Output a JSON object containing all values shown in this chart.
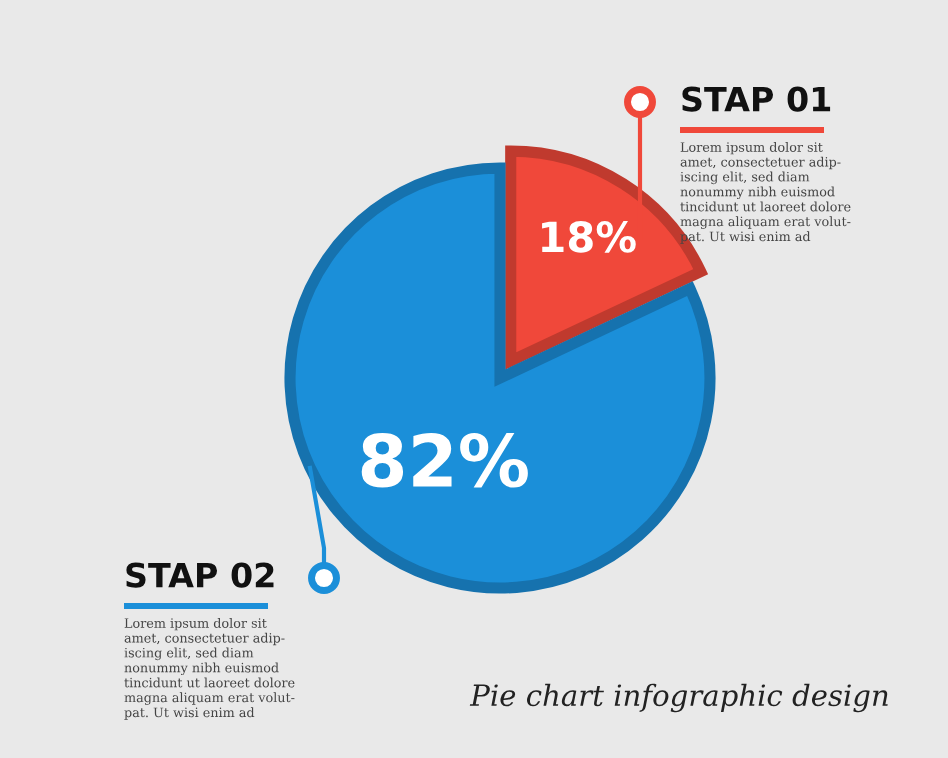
{
  "chart_data": {
    "type": "pie",
    "title": "Pie chart infographic design",
    "categories": [
      "STAP 01",
      "STAP 02"
    ],
    "values": [
      18,
      82
    ],
    "colors": [
      "#f0483a",
      "#1b8fd9"
    ],
    "value_labels": [
      "18%",
      "82%"
    ],
    "annotations": [
      "Lorem ipsum dolor sit\namet, consectetuer adip-\niscing elit, sed diam\nnonummy nibh euismod\ntincidunt ut laoreet dolore\nmagna aliquam erat volut-\npat. Ut wisi enim ad",
      "Lorem ipsum dolor sit\namet, consectetuer adip-\niscing elit, sed diam\nnonummy nibh euismod\ntincidunt ut laoreet dolore\nmagna aliquam erat volut-\npat. Ut wisi enim ad"
    ]
  }
}
